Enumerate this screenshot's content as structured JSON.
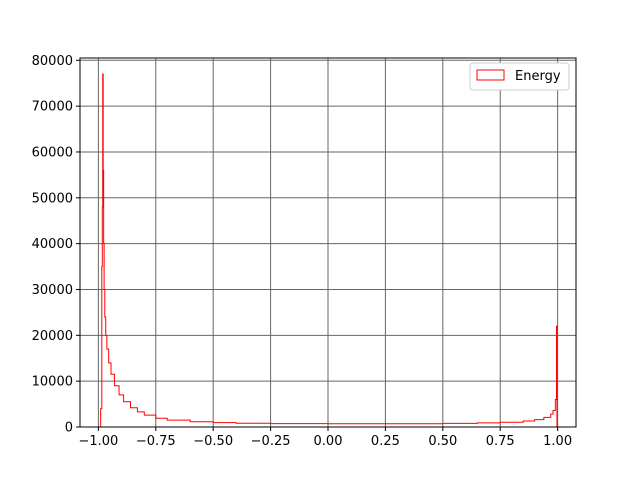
{
  "chart_data": {
    "type": "histogram",
    "legend": {
      "entries": [
        "Energy"
      ],
      "placement": "top-right"
    },
    "xlim": [
      -1.08,
      1.08
    ],
    "ylim": [
      0,
      80500
    ],
    "grid": true,
    "grid_color": "#666666",
    "series_color": "#ff0000",
    "x_ticks": [
      -1.0,
      -0.75,
      -0.5,
      -0.25,
      0.0,
      0.25,
      0.5,
      0.75,
      1.0
    ],
    "x_tick_labels": [
      "−1.00",
      "−0.75",
      "−0.50",
      "−0.25",
      "0.00",
      "0.25",
      "0.50",
      "0.75",
      "1.00"
    ],
    "y_ticks": [
      0,
      10000,
      20000,
      30000,
      40000,
      50000,
      60000,
      70000,
      80000
    ],
    "y_tick_labels": [
      "0",
      "10000",
      "20000",
      "30000",
      "40000",
      "50000",
      "60000",
      "70000",
      "80000"
    ],
    "series": [
      {
        "name": "Energy",
        "points": [
          [
            -0.99,
            0
          ],
          [
            -0.99,
            4000
          ],
          [
            -0.985,
            4000
          ],
          [
            -0.985,
            35000
          ],
          [
            -0.983,
            35000
          ],
          [
            -0.983,
            48000
          ],
          [
            -0.981,
            48000
          ],
          [
            -0.981,
            77000
          ],
          [
            -0.979,
            77000
          ],
          [
            -0.979,
            56000
          ],
          [
            -0.977,
            56000
          ],
          [
            -0.977,
            40000
          ],
          [
            -0.975,
            40000
          ],
          [
            -0.975,
            30000
          ],
          [
            -0.972,
            30000
          ],
          [
            -0.972,
            24000
          ],
          [
            -0.968,
            24000
          ],
          [
            -0.968,
            20000
          ],
          [
            -0.963,
            20000
          ],
          [
            -0.963,
            17000
          ],
          [
            -0.955,
            17000
          ],
          [
            -0.955,
            14000
          ],
          [
            -0.945,
            14000
          ],
          [
            -0.945,
            11500
          ],
          [
            -0.93,
            11500
          ],
          [
            -0.93,
            9000
          ],
          [
            -0.91,
            9000
          ],
          [
            -0.91,
            7000
          ],
          [
            -0.89,
            7000
          ],
          [
            -0.89,
            5500
          ],
          [
            -0.86,
            5500
          ],
          [
            -0.86,
            4200
          ],
          [
            -0.83,
            4200
          ],
          [
            -0.83,
            3300
          ],
          [
            -0.8,
            3300
          ],
          [
            -0.8,
            2600
          ],
          [
            -0.75,
            2600
          ],
          [
            -0.75,
            1900
          ],
          [
            -0.7,
            1900
          ],
          [
            -0.7,
            1500
          ],
          [
            -0.6,
            1500
          ],
          [
            -0.6,
            1150
          ],
          [
            -0.5,
            1150
          ],
          [
            -0.5,
            950
          ],
          [
            -0.4,
            950
          ],
          [
            -0.4,
            820
          ],
          [
            -0.25,
            820
          ],
          [
            -0.25,
            740
          ],
          [
            0.0,
            740
          ],
          [
            0.0,
            700
          ],
          [
            0.25,
            700
          ],
          [
            0.25,
            720
          ],
          [
            0.5,
            720
          ],
          [
            0.5,
            800
          ],
          [
            0.65,
            800
          ],
          [
            0.65,
            900
          ],
          [
            0.75,
            900
          ],
          [
            0.75,
            1050
          ],
          [
            0.85,
            1050
          ],
          [
            0.85,
            1300
          ],
          [
            0.9,
            1300
          ],
          [
            0.9,
            1600
          ],
          [
            0.94,
            1600
          ],
          [
            0.94,
            2100
          ],
          [
            0.97,
            2100
          ],
          [
            0.97,
            2800
          ],
          [
            0.98,
            2800
          ],
          [
            0.98,
            3600
          ],
          [
            0.99,
            3600
          ],
          [
            0.99,
            6000
          ],
          [
            0.995,
            6000
          ],
          [
            0.995,
            22000
          ],
          [
            0.997,
            22000
          ],
          [
            0.997,
            0
          ]
        ]
      }
    ]
  }
}
